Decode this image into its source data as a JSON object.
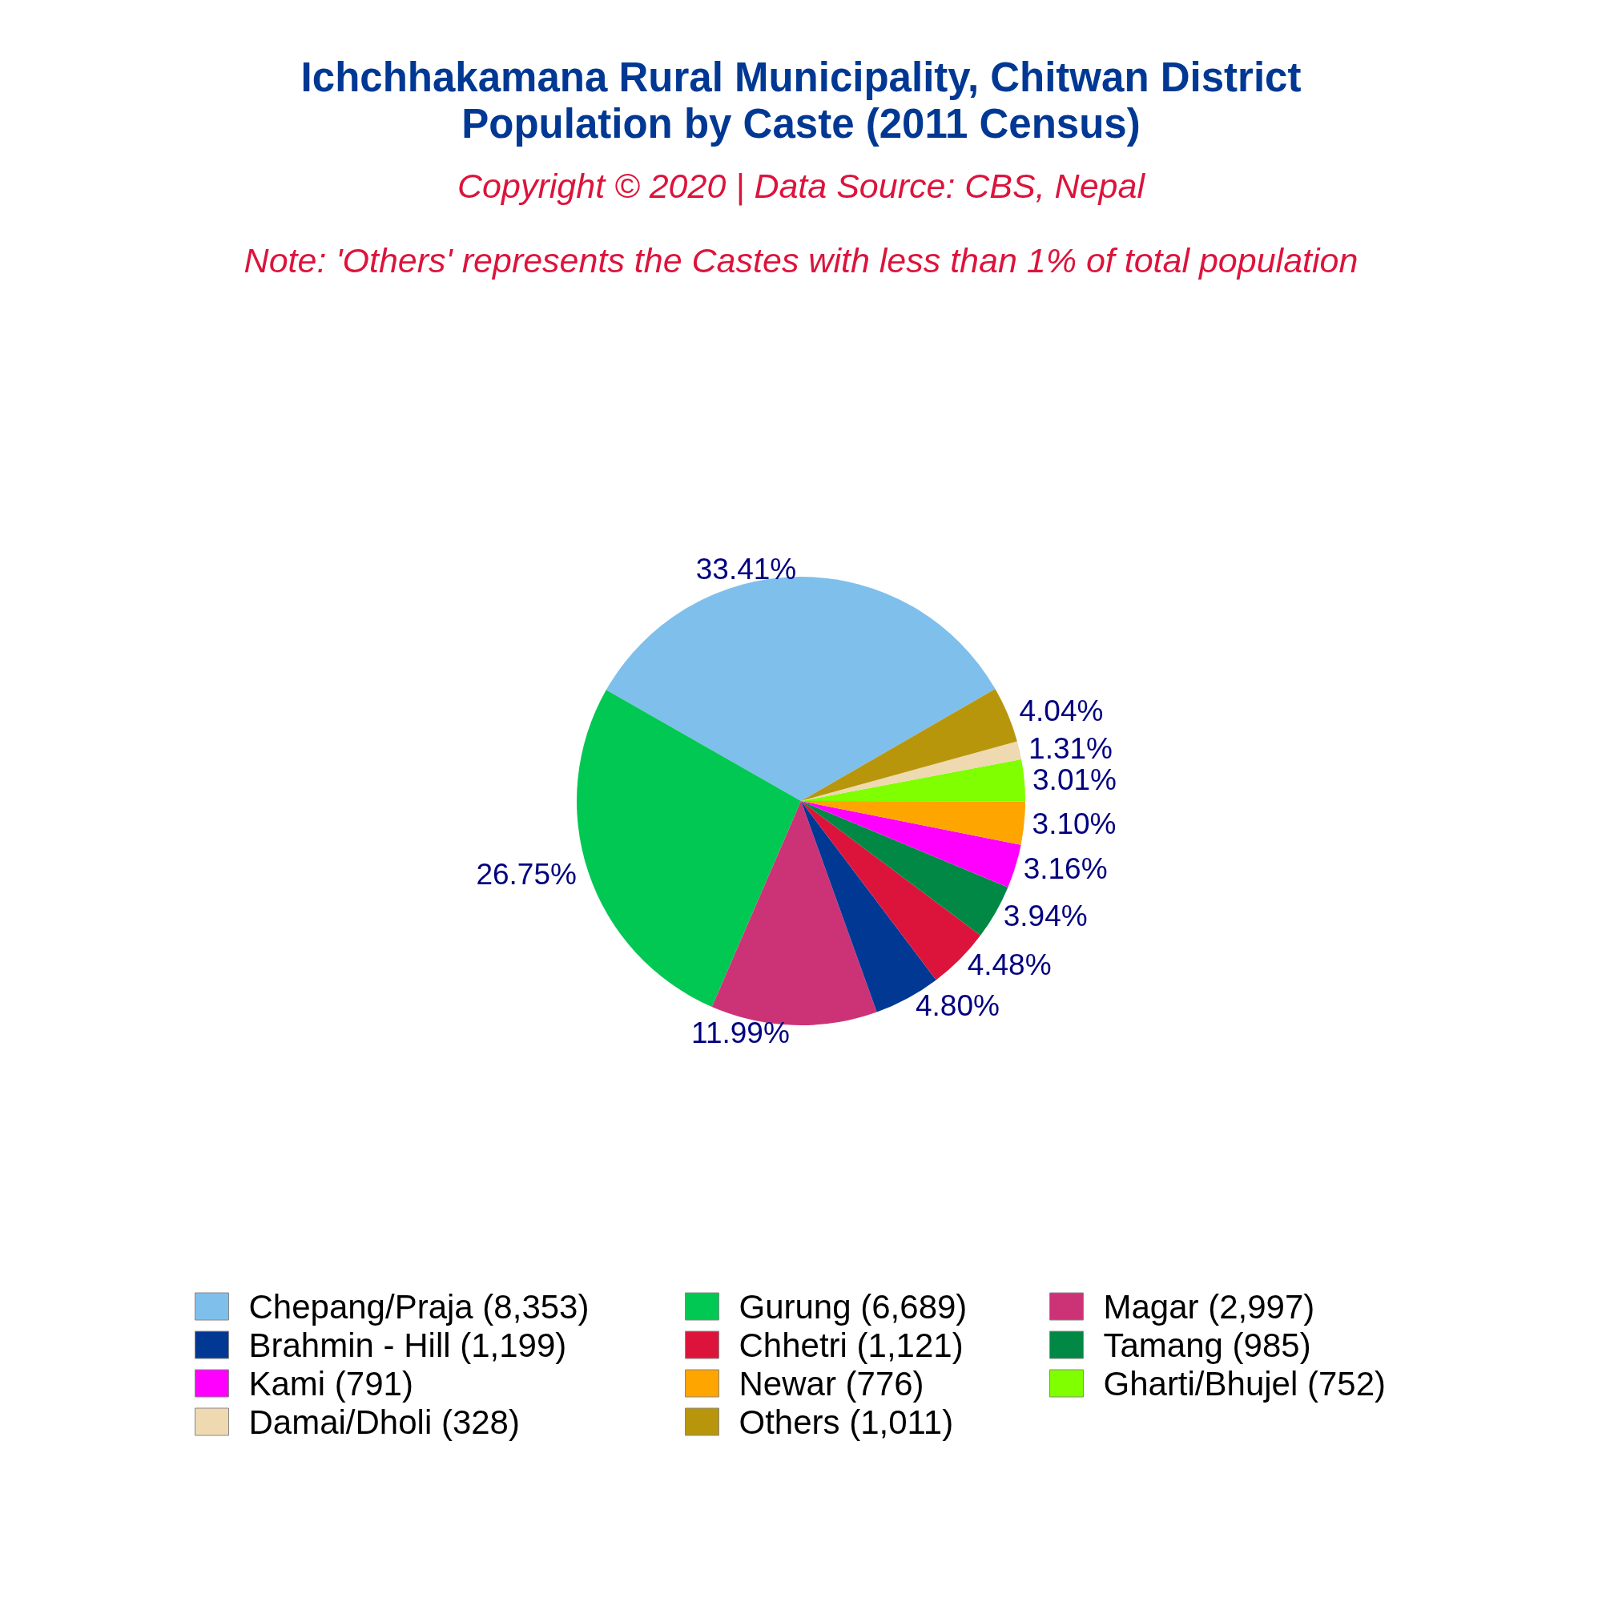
{
  "chart_data": {
    "type": "pie",
    "title": "Ichchhakamana Rural Municipality, Chitwan District\nPopulation by Caste (2011 Census)",
    "subtitle": "Copyright © 2020 | Data Source: CBS, Nepal",
    "annotations": [
      "Note: 'Others' represents the Castes with less than 1% of total population"
    ],
    "categories": [
      "Chepang/Praja (8,353)",
      "Gurung (6,689)",
      "Magar (2,997)",
      "Brahmin - Hill (1,199)",
      "Chhetri (1,121)",
      "Tamang (985)",
      "Kami (791)",
      "Newar (776)",
      "Gharti/Bhujel (752)",
      "Damai/Dholi (328)",
      "Others (1,011)"
    ],
    "values": [
      33.41,
      26.75,
      11.99,
      4.8,
      4.48,
      3.94,
      3.16,
      3.1,
      3.01,
      1.31,
      4.04
    ],
    "value_labels": [
      "33.41%",
      "26.75%",
      "11.99%",
      "4.80%",
      "4.48%",
      "3.94%",
      "3.16%",
      "3.10%",
      "3.01%",
      "1.31%",
      "4.04%"
    ],
    "colors": [
      "#7fbfec",
      "#00c853",
      "#cc3377",
      "#003893",
      "#dc143c",
      "#008844",
      "#ff00ff",
      "#ffa500",
      "#7fff00",
      "#eed9b0",
      "#b8960c"
    ],
    "legend": "bottom"
  }
}
